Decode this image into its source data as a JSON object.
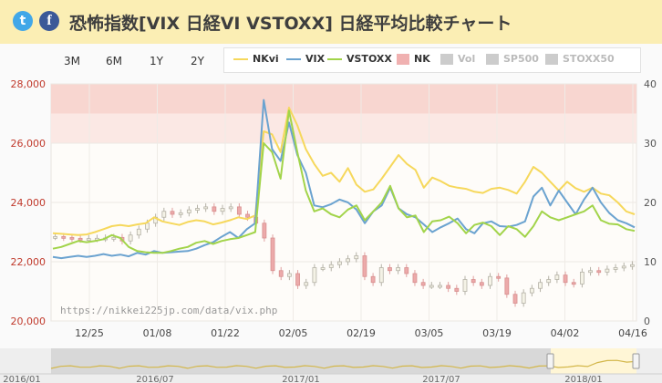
{
  "header": {
    "title": "恐怖指数[VIX 日経VI VSTOXX] 日経平均比較チャート",
    "twitter_icon": "t",
    "facebook_icon": "f"
  },
  "range_buttons": [
    {
      "label": "3M",
      "active": true
    },
    {
      "label": "6M",
      "active": false
    },
    {
      "label": "1Y",
      "active": false
    },
    {
      "label": "2Y",
      "active": false
    }
  ],
  "legend": [
    {
      "label": "NKvi",
      "color": "#f6d85c",
      "kind": "line",
      "active": true
    },
    {
      "label": "VIX",
      "color": "#6ba3d0",
      "kind": "line",
      "active": true
    },
    {
      "label": "VSTOXX",
      "color": "#a2d44a",
      "kind": "line",
      "active": true
    },
    {
      "label": "NK",
      "color": "#f0b1b1",
      "kind": "box",
      "active": true
    },
    {
      "label": "Vol",
      "color": "#cccccc",
      "kind": "box",
      "active": false
    },
    {
      "label": "SP500",
      "color": "#cccccc",
      "kind": "box",
      "active": false
    },
    {
      "label": "STOXX50",
      "color": "#cccccc",
      "kind": "box",
      "active": false
    }
  ],
  "watermark": "https://nikkei225jp.com/data/vix.php",
  "navigator": {
    "labels": [
      "2016/01",
      "2016/07",
      "2017/01",
      "2017/07",
      "2018/01"
    ]
  },
  "chart_data": {
    "type": "line",
    "x_labels": [
      "12/25",
      "01/08",
      "01/22",
      "02/05",
      "02/19",
      "03/05",
      "03/19",
      "04/02",
      "04/16"
    ],
    "left_axis": {
      "ticks": [
        "28,000",
        "26,000",
        "24,000",
        "22,000",
        "20,000"
      ],
      "range": [
        20000,
        28000
      ],
      "color": "#c0392b"
    },
    "right_axis": {
      "ticks": [
        "40",
        "30",
        "20",
        "10",
        "0"
      ],
      "range": [
        0,
        40
      ]
    },
    "bands": [
      {
        "from": 27000,
        "to": 28000,
        "color": "#f8d6d0"
      },
      {
        "from": 26000,
        "to": 27000,
        "color": "#fbe8e4"
      }
    ],
    "series": [
      {
        "name": "NKvi",
        "color": "#f6d85c",
        "values": [
          14.8,
          14.7,
          14.6,
          14.5,
          14.6,
          15.0,
          15.5,
          16.0,
          16.2,
          16.0,
          16.3,
          16.5,
          17.5,
          16.8,
          16.5,
          16.2,
          16.7,
          17.0,
          16.8,
          16.3,
          16.6,
          17.0,
          17.5,
          17.2,
          17.8,
          32.0,
          31.5,
          28.5,
          36.0,
          33.0,
          29.0,
          26.5,
          24.5,
          25.0,
          23.5,
          25.8,
          23.0,
          21.8,
          22.2,
          24.0,
          26.0,
          28.0,
          26.5,
          25.5,
          22.5,
          24.2,
          23.6,
          22.8,
          22.5,
          22.3,
          21.8,
          21.6,
          22.3,
          22.5,
          22.1,
          21.5,
          23.5,
          26.0,
          25.0,
          23.5,
          22.0,
          23.5,
          22.4,
          21.8,
          22.5,
          21.5,
          21.2,
          20.0,
          18.5,
          18.0
        ]
      },
      {
        "name": "VIX",
        "color": "#6ba3d0",
        "values": [
          10.8,
          10.6,
          10.8,
          11.0,
          10.8,
          11.0,
          11.3,
          11.0,
          11.2,
          10.9,
          11.5,
          11.2,
          11.8,
          11.5,
          11.6,
          11.7,
          11.8,
          12.2,
          12.8,
          13.3,
          14.2,
          15.0,
          14.0,
          15.5,
          16.5,
          37.3,
          29.0,
          27.0,
          33.5,
          28.0,
          25.0,
          19.5,
          19.2,
          19.7,
          20.5,
          20.0,
          18.8,
          16.5,
          18.5,
          19.5,
          22.5,
          19.0,
          18.0,
          17.5,
          16.3,
          15.0,
          15.8,
          16.5,
          17.3,
          15.5,
          14.8,
          16.5,
          16.8,
          16.0,
          15.9,
          16.2,
          16.8,
          21.0,
          22.5,
          19.5,
          22.0,
          20.0,
          18.0,
          20.5,
          22.5,
          20.0,
          18.2,
          17.0,
          16.5,
          15.8
        ]
      },
      {
        "name": "VSTOXX",
        "color": "#a2d44a",
        "values": [
          12.2,
          12.5,
          13.0,
          13.5,
          13.3,
          13.5,
          13.8,
          14.5,
          14.0,
          12.5,
          11.8,
          11.6,
          11.5,
          11.5,
          11.8,
          12.2,
          12.5,
          13.2,
          13.5,
          13.0,
          13.5,
          13.8,
          14.0,
          14.5,
          15.0,
          30.0,
          28.5,
          24.0,
          35.5,
          28.5,
          22.0,
          18.5,
          19.0,
          18.0,
          17.5,
          18.8,
          19.5,
          17.0,
          18.5,
          20.0,
          22.8,
          19.0,
          17.5,
          17.8,
          15.0,
          16.8,
          17.0,
          17.6,
          16.5,
          14.8,
          16.2,
          16.6,
          16.0,
          14.5,
          16.0,
          15.5,
          14.2,
          16.0,
          18.5,
          17.5,
          17.0,
          17.5,
          18.0,
          18.5,
          19.5,
          17.0,
          16.4,
          16.3,
          15.5,
          15.2
        ]
      },
      {
        "name": "NK",
        "color": "#e8a5a5",
        "values": [
          22850,
          22820,
          22790,
          22760,
          22780,
          22790,
          22800,
          22820,
          22700,
          22900,
          23100,
          23300,
          23500,
          23700,
          23600,
          23650,
          23750,
          23800,
          23850,
          23700,
          23800,
          23850,
          23600,
          23500,
          23300,
          22800,
          21700,
          21500,
          21600,
          21200,
          21300,
          21800,
          21800,
          21900,
          22000,
          22100,
          22200,
          21500,
          21300,
          21800,
          21700,
          21800,
          21600,
          21300,
          21200,
          21200,
          21200,
          21100,
          21000,
          21400,
          21300,
          21200,
          21500,
          21450,
          20900,
          20600,
          20950,
          21100,
          21300,
          21400,
          21550,
          21300,
          21250,
          21650,
          21700,
          21650,
          21750,
          21800,
          21850,
          21900
        ]
      }
    ]
  }
}
